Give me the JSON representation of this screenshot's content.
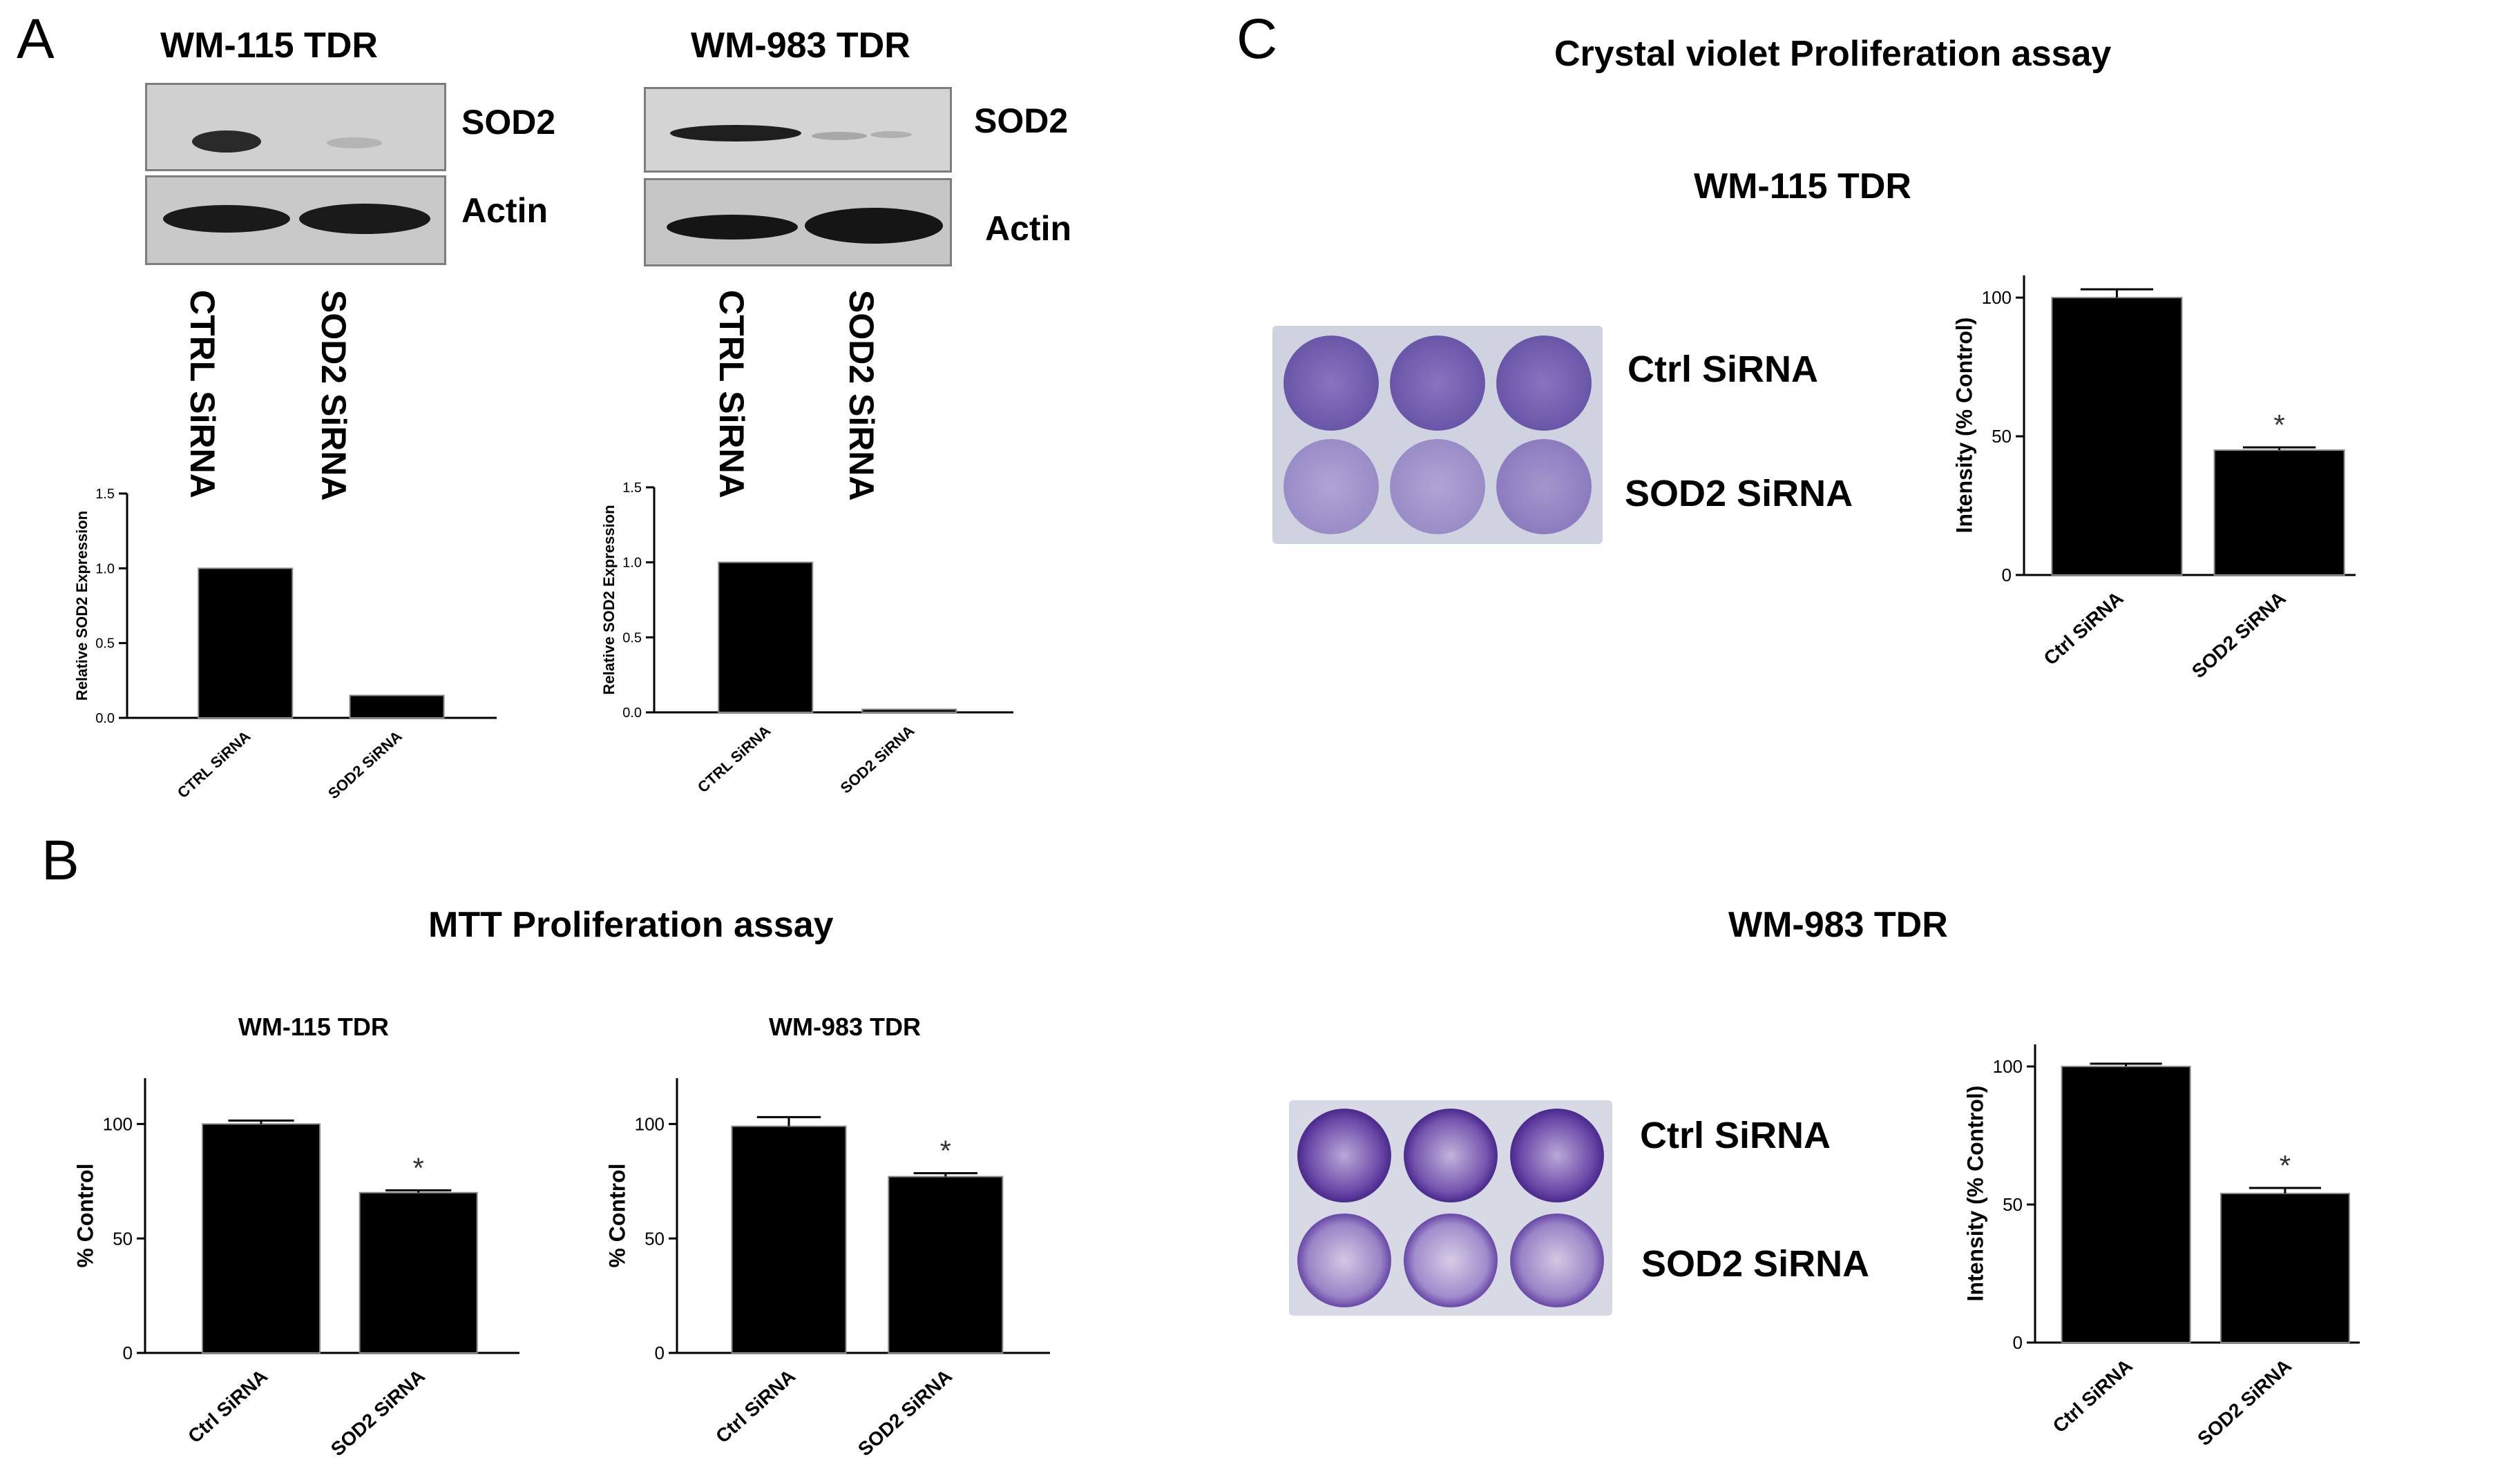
{
  "panels": {
    "a": {
      "letter": "A",
      "left_title": "WM-115 TDR",
      "right_title": "WM-983 TDR",
      "band_top": "SOD2",
      "band_bottom": "Actin",
      "lane1": "CTRL SiRNA",
      "lane2": "SOD2 SiRNA"
    },
    "b": {
      "letter": "B",
      "title": "MTT Proliferation assay"
    },
    "c": {
      "letter": "C",
      "title": "Crystal violet Proliferation assay",
      "top_label": "WM-115 TDR",
      "bottom_label": "WM-983 TDR",
      "row1": "Ctrl SiRNA",
      "row2": "SOD2 SiRNA"
    }
  },
  "colors": {
    "bar": "#000000",
    "plate_purple": "#6a4fa8",
    "blot_bg": "#d6d6d6"
  },
  "chart_data": [
    {
      "id": "a1",
      "type": "bar",
      "title": "",
      "ylabel": "Relative SOD2 Expression",
      "categories": [
        "CTRL SiRNA",
        "SOD2 SiRNA"
      ],
      "values": [
        1.0,
        0.15
      ],
      "ylim": [
        0,
        1.5
      ],
      "yticks": [
        "0.0",
        "0.5",
        "1.0",
        "1.5"
      ],
      "error": [
        0,
        0
      ],
      "stars": [
        "",
        ""
      ]
    },
    {
      "id": "a2",
      "type": "bar",
      "title": "",
      "ylabel": "Relative SOD2 Expression",
      "categories": [
        "CTRL SiRNA",
        "SOD2 SiRNA"
      ],
      "values": [
        1.0,
        0.02
      ],
      "ylim": [
        0,
        1.5
      ],
      "yticks": [
        "0.0",
        "0.5",
        "1.0",
        "1.5"
      ],
      "error": [
        0,
        0
      ],
      "stars": [
        "",
        ""
      ]
    },
    {
      "id": "b1",
      "type": "bar",
      "title": "WM-115 TDR",
      "ylabel": "% Control",
      "categories": [
        "Ctrl SiRNA",
        "SOD2 SiRNA"
      ],
      "values": [
        100,
        70
      ],
      "ylim": [
        0,
        120
      ],
      "yticks": [
        "0",
        "50",
        "100"
      ],
      "error": [
        1.5,
        1
      ],
      "stars": [
        "",
        "*"
      ]
    },
    {
      "id": "b2",
      "type": "bar",
      "title": "WM-983 TDR",
      "ylabel": "% Control",
      "categories": [
        "Ctrl SiRNA",
        "SOD2 SiRNA"
      ],
      "values": [
        99,
        77
      ],
      "ylim": [
        0,
        120
      ],
      "yticks": [
        "0",
        "50",
        "100"
      ],
      "error": [
        4,
        1.5
      ],
      "stars": [
        "",
        "*"
      ]
    },
    {
      "id": "c1",
      "type": "bar",
      "title": "",
      "ylabel": "Intensity (% Control)",
      "categories": [
        "Ctrl SiRNA",
        "SOD2 SiRNA"
      ],
      "values": [
        100,
        45
      ],
      "ylim": [
        0,
        108
      ],
      "yticks": [
        "0",
        "50",
        "100"
      ],
      "error": [
        3,
        1
      ],
      "stars": [
        "",
        "*"
      ]
    },
    {
      "id": "c2",
      "type": "bar",
      "title": "",
      "ylabel": "Intensity (% Control)",
      "categories": [
        "Ctrl SiRNA",
        "SOD2 SiRNA"
      ],
      "values": [
        100,
        54
      ],
      "ylim": [
        0,
        108
      ],
      "yticks": [
        "0",
        "50",
        "100"
      ],
      "error": [
        1,
        2
      ],
      "stars": [
        "",
        "*"
      ]
    }
  ]
}
